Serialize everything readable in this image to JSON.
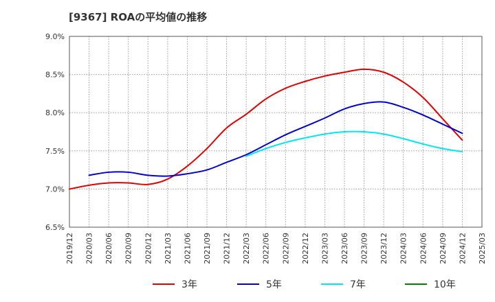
{
  "chart_data": {
    "type": "line",
    "title": "[9367]  ROAの平均値の推移",
    "xlabel": "",
    "ylabel": "",
    "ylim": [
      6.5,
      9.0
    ],
    "y_ticks": [
      "6.5%",
      "7.0%",
      "7.5%",
      "8.0%",
      "8.5%",
      "9.0%"
    ],
    "x_ticks": [
      "2019/12",
      "2020/03",
      "2020/06",
      "2020/09",
      "2020/12",
      "2021/03",
      "2021/06",
      "2021/09",
      "2021/12",
      "2022/03",
      "2022/06",
      "2022/09",
      "2022/12",
      "2023/03",
      "2023/06",
      "2023/09",
      "2023/12",
      "2024/03",
      "2024/06",
      "2024/09",
      "2024/12",
      "2025/03"
    ],
    "grid": true,
    "legend_position": "bottom",
    "series": [
      {
        "name": "3年",
        "color": "#dd0000",
        "values": [
          7.0,
          7.05,
          7.08,
          7.08,
          7.06,
          7.13,
          7.3,
          7.53,
          7.8,
          7.98,
          8.18,
          8.32,
          8.41,
          8.48,
          8.53,
          8.57,
          8.53,
          8.4,
          8.2,
          7.92,
          7.64,
          null
        ]
      },
      {
        "name": "5年",
        "color": "#0000cc",
        "values": [
          null,
          7.18,
          7.22,
          7.22,
          7.18,
          7.17,
          7.2,
          7.25,
          7.35,
          7.45,
          7.58,
          7.71,
          7.82,
          7.93,
          8.05,
          8.12,
          8.14,
          8.07,
          7.97,
          7.85,
          7.73,
          null
        ]
      },
      {
        "name": "7年",
        "color": "#00e5ee",
        "values": [
          null,
          null,
          null,
          null,
          null,
          null,
          null,
          null,
          null,
          7.43,
          7.53,
          7.61,
          7.67,
          7.72,
          7.75,
          7.75,
          7.72,
          7.66,
          7.59,
          7.53,
          7.49,
          null
        ]
      },
      {
        "name": "10年",
        "color": "#008000",
        "values": [
          null,
          null,
          null,
          null,
          null,
          null,
          null,
          null,
          null,
          null,
          null,
          null,
          null,
          null,
          null,
          null,
          null,
          null,
          null,
          null,
          null,
          null
        ]
      }
    ]
  }
}
